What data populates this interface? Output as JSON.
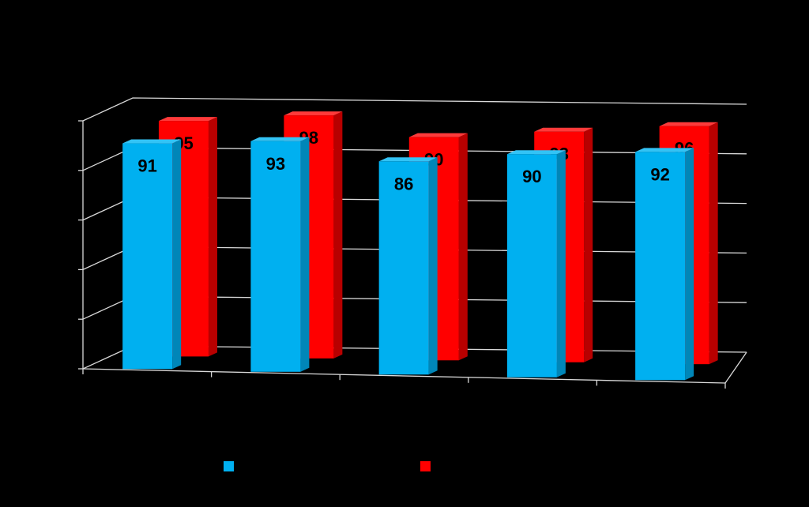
{
  "chart_data": {
    "type": "bar",
    "title": "",
    "xlabel": "",
    "ylabel": "",
    "categories": [
      "",
      "",
      "",
      "",
      ""
    ],
    "series": [
      {
        "name": "",
        "color": "#00b0f0",
        "side_color": "#0086b8",
        "top_color": "#33c3f5",
        "values": [
          91,
          93,
          86,
          90,
          92
        ]
      },
      {
        "name": "",
        "color": "#ff0000",
        "side_color": "#b80000",
        "top_color": "#ff3a3a",
        "values": [
          95,
          98,
          90,
          93,
          96
        ]
      }
    ],
    "ylim": [
      0,
      100
    ],
    "grid": true,
    "data_labels": true,
    "legend_position": "bottom",
    "three_d": true
  },
  "colors": {
    "background": "#000000",
    "axis": "#d9d9d9",
    "label_text": "#000000"
  }
}
